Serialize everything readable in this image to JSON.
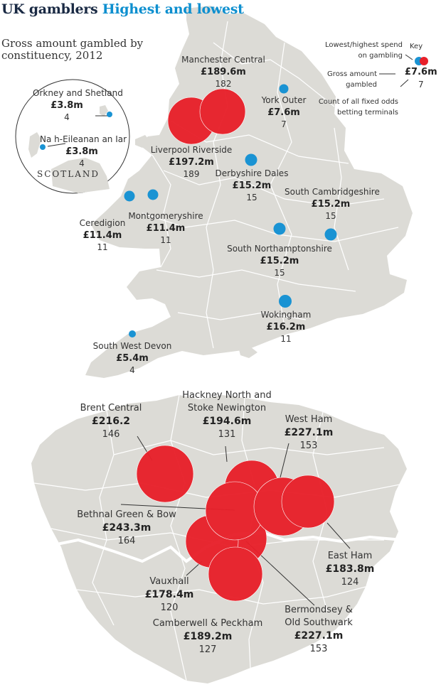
{
  "header": {
    "title_part1": "UK gamblers",
    "title_part2": "Highest and lowest",
    "subtitle": "Gross amount gambled by constituency, 2012"
  },
  "key": {
    "title": "Key",
    "lowest_highest": "Lowest/highest spend on gambling",
    "gross_amount": "Gross amount gambled",
    "count": "Count of all fixed odds betting terminals",
    "example_amount": "£7.6m",
    "example_count": "7"
  },
  "inset": {
    "region_label": "SCOTLAND"
  },
  "colors": {
    "lowest": "#1a93d3",
    "highest": "#e8202a",
    "land": "#dcdbd6",
    "border": "#ffffff"
  },
  "constituencies": {
    "manchester_central": {
      "name": "Manchester Central",
      "amount": "£189.6m",
      "count": "182"
    },
    "york_outer": {
      "name": "York Outer",
      "amount": "£7.6m",
      "count": "7"
    },
    "liverpool_riverside": {
      "name": "Liverpool Riverside",
      "amount": "£197.2m",
      "count": "189"
    },
    "derbyshire_dales": {
      "name": "Derbyshire Dales",
      "amount": "£15.2m",
      "count": "15"
    },
    "south_cambridgeshire": {
      "name": "South Cambridgeshire",
      "amount": "£15.2m",
      "count": "15"
    },
    "ceredigion": {
      "name": "Ceredigion",
      "amount": "£11.4m",
      "count": "11"
    },
    "montgomeryshire": {
      "name": "Montgomeryshire",
      "amount": "£11.4m",
      "count": "11"
    },
    "south_northamptonshire": {
      "name": "South Northamptonshire",
      "amount": "£15.2m",
      "count": "15"
    },
    "wokingham": {
      "name": "Wokingham",
      "amount": "£16.2m",
      "count": "11"
    },
    "south_west_devon": {
      "name": "South West Devon",
      "amount": "£5.4m",
      "count": "4"
    },
    "orkney_shetland": {
      "name": "Orkney and Shetland",
      "amount": "£3.8m",
      "count": "4"
    },
    "na_h_eileanan": {
      "name": "Na h-Eileanan an Iar",
      "amount": "£3.8m",
      "count": "4"
    },
    "brent_central": {
      "name": "Brent Central",
      "amount": "£216.2",
      "count": "146"
    },
    "hackney_north": {
      "name": "Hackney North and Stoke Newington",
      "name_line1": "Hackney North and",
      "name_line2": "Stoke Newington",
      "amount": "£194.6m",
      "count": "131"
    },
    "west_ham": {
      "name": "West Ham",
      "amount": "£227.1m",
      "count": "153"
    },
    "bethnal_green": {
      "name": "Bethnal Green & Bow",
      "amount": "£243.3m",
      "count": "164"
    },
    "east_ham": {
      "name": "East Ham",
      "amount": "£183.8m",
      "count": "124"
    },
    "vauxhall": {
      "name": "Vauxhall",
      "amount": "£178.4m",
      "count": "120"
    },
    "bermondsey": {
      "name": "Bermondsey & Old Southwark",
      "name_line1": "Bermondsey &",
      "name_line2": "Old Southwark",
      "amount": "£227.1m",
      "count": "153"
    },
    "camberwell": {
      "name": "Camberwell & Peckham",
      "amount": "£189.2m",
      "count": "127"
    }
  }
}
